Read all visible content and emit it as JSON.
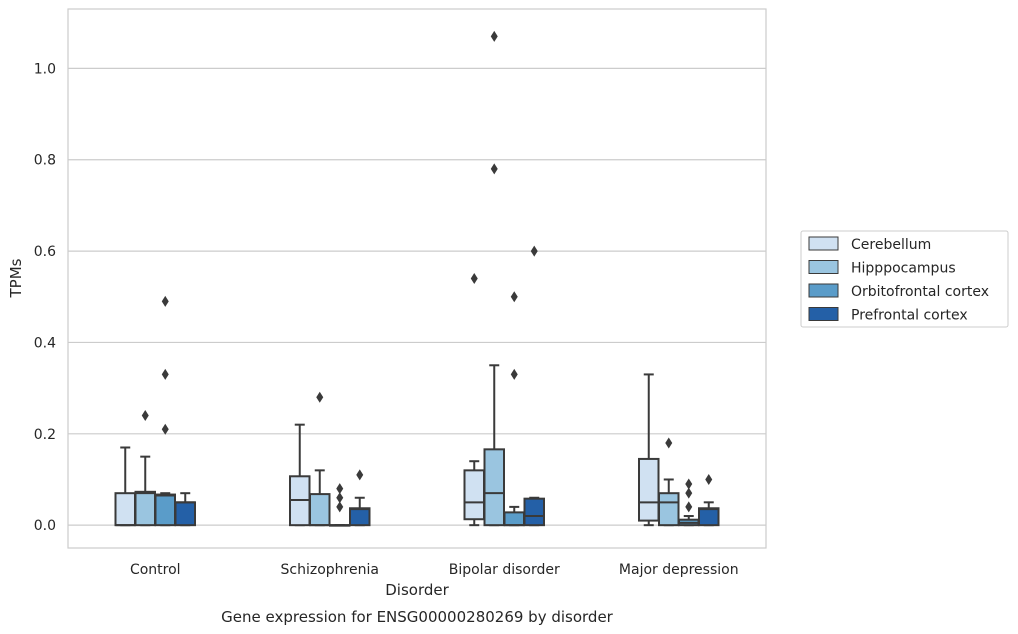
{
  "chart_data": {
    "type": "box",
    "title": "",
    "caption": "Gene expression for ENSG00000280269 by disorder",
    "xlabel": "Disorder",
    "ylabel": "TPMs",
    "ylim": [
      -0.05,
      1.13
    ],
    "yticks": [
      "0.0",
      "0.2",
      "0.4",
      "0.6",
      "0.8",
      "1.0"
    ],
    "yticks_values": [
      0.0,
      0.2,
      0.4,
      0.6,
      0.8,
      1.0
    ],
    "grid": "horizontal",
    "legend_position": "right",
    "categories": [
      "Control",
      "Schizophrenia",
      "Bipolar disorder",
      "Major depression"
    ],
    "series": [
      {
        "name": "Cerebellum",
        "color": "#d0e1f2",
        "boxes": [
          {
            "whislo": 0.0,
            "q1": 0.0,
            "med": 0.0,
            "q3": 0.07,
            "whishi": 0.17,
            "fliers": []
          },
          {
            "whislo": 0.0,
            "q1": 0.0,
            "med": 0.055,
            "q3": 0.107,
            "whishi": 0.22,
            "fliers": []
          },
          {
            "whislo": 0.0,
            "q1": 0.013,
            "med": 0.05,
            "q3": 0.12,
            "whishi": 0.14,
            "fliers": [
              0.54
            ]
          },
          {
            "whislo": 0.0,
            "q1": 0.01,
            "med": 0.05,
            "q3": 0.145,
            "whishi": 0.33,
            "fliers": []
          }
        ]
      },
      {
        "name": "Hipppocampus",
        "color": "#9ac5e0",
        "boxes": [
          {
            "whislo": 0.0,
            "q1": 0.0,
            "med": 0.07,
            "q3": 0.073,
            "whishi": 0.15,
            "fliers": [
              0.24
            ]
          },
          {
            "whislo": 0.0,
            "q1": 0.0,
            "med": 0.0,
            "q3": 0.068,
            "whishi": 0.12,
            "fliers": [
              0.28
            ]
          },
          {
            "whislo": 0.0,
            "q1": 0.0,
            "med": 0.07,
            "q3": 0.166,
            "whishi": 0.35,
            "fliers": [
              0.78,
              1.07
            ]
          },
          {
            "whislo": 0.0,
            "q1": 0.0,
            "med": 0.05,
            "q3": 0.07,
            "whishi": 0.1,
            "fliers": [
              0.18
            ]
          }
        ]
      },
      {
        "name": "Orbitofrontal cortex",
        "color": "#5a9cc9",
        "boxes": [
          {
            "whislo": 0.0,
            "q1": 0.0,
            "med": 0.065,
            "q3": 0.067,
            "whishi": 0.07,
            "fliers": [
              0.21,
              0.33,
              0.49
            ]
          },
          {
            "whislo": 0.0,
            "q1": 0.0,
            "med": 0.0,
            "q3": 0.0,
            "whishi": 0.0,
            "fliers": [
              0.04,
              0.06,
              0.08
            ]
          },
          {
            "whislo": 0.0,
            "q1": 0.0,
            "med": 0.0,
            "q3": 0.028,
            "whishi": 0.04,
            "fliers": [
              0.33,
              0.5
            ]
          },
          {
            "whislo": 0.0,
            "q1": 0.0,
            "med": 0.005,
            "q3": 0.012,
            "whishi": 0.02,
            "fliers": [
              0.04,
              0.07,
              0.09
            ]
          }
        ]
      },
      {
        "name": "Prefrontal cortex",
        "color": "#2460a7",
        "boxes": [
          {
            "whislo": 0.0,
            "q1": 0.0,
            "med": 0.05,
            "q3": 0.05,
            "whishi": 0.07,
            "fliers": []
          },
          {
            "whislo": 0.0,
            "q1": 0.0,
            "med": 0.035,
            "q3": 0.037,
            "whishi": 0.06,
            "fliers": [
              0.11
            ]
          },
          {
            "whislo": 0.0,
            "q1": 0.0,
            "med": 0.02,
            "q3": 0.058,
            "whishi": 0.06,
            "fliers": [
              0.6
            ]
          },
          {
            "whislo": 0.0,
            "q1": 0.0,
            "med": 0.035,
            "q3": 0.037,
            "whishi": 0.05,
            "fliers": [
              0.1
            ]
          }
        ]
      }
    ],
    "colors": {
      "axes_edge": "#cccccc",
      "gridline": "#cccccc",
      "box_edge": "#3a3a3a",
      "flier": "#3a3a3a",
      "legend_edge": "#cccccc"
    }
  }
}
